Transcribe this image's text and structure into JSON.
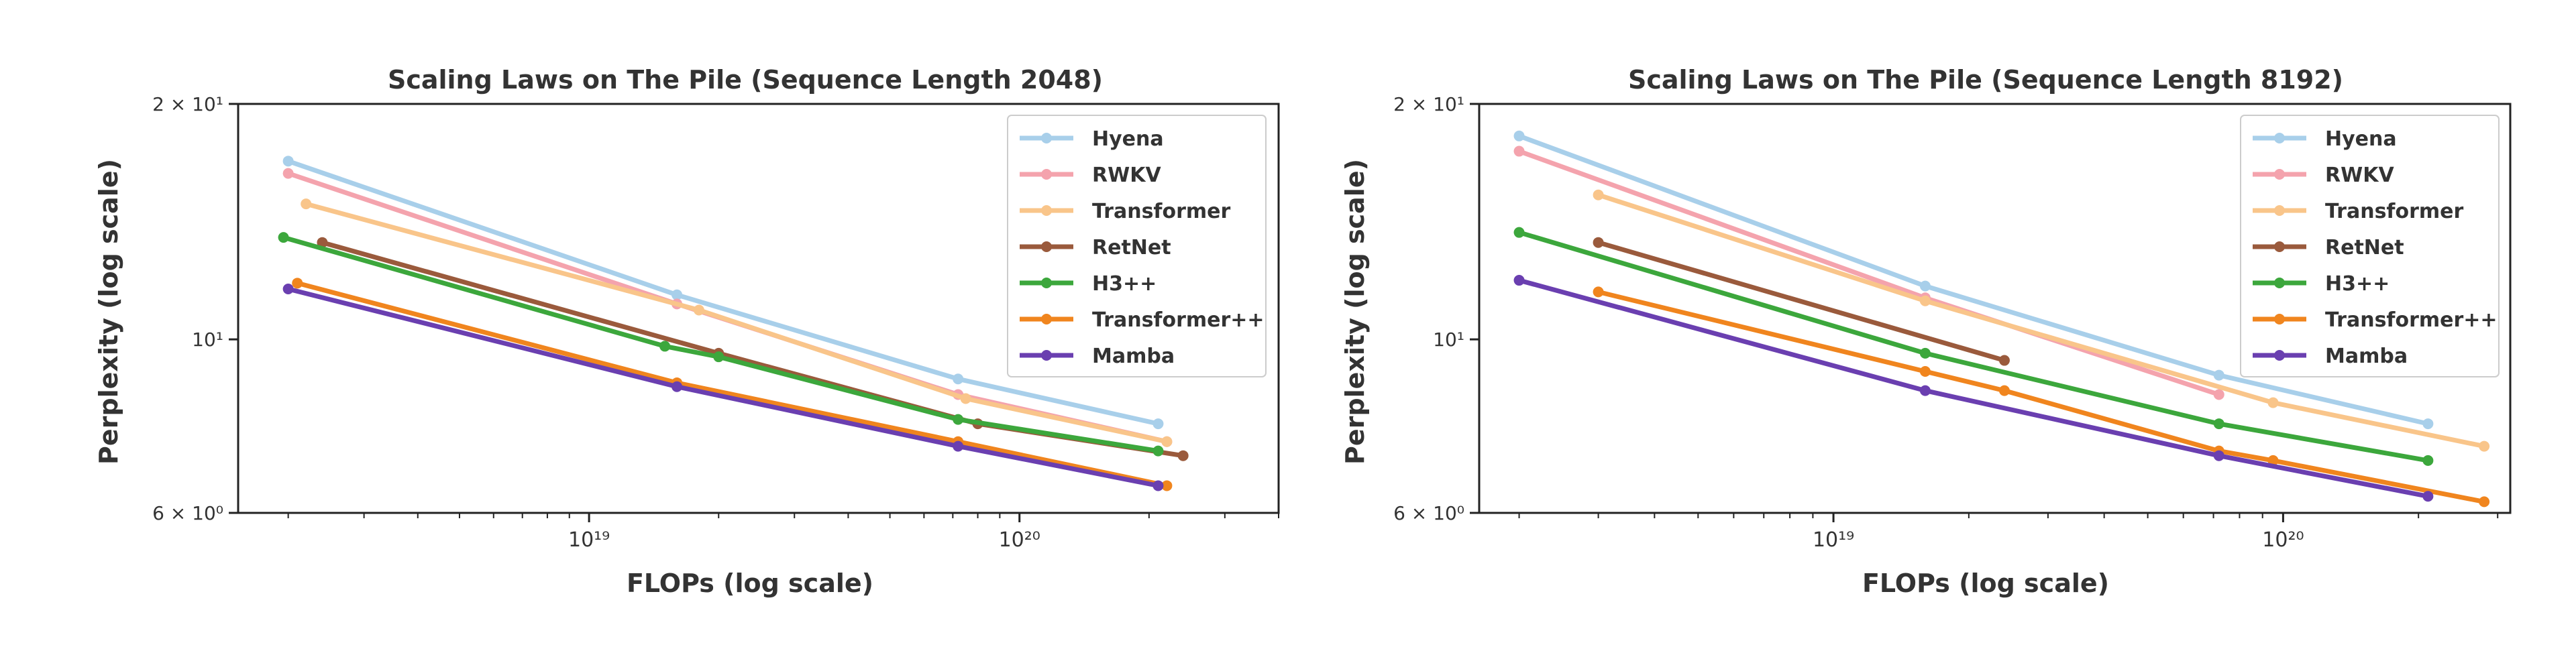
{
  "chart_data": [
    {
      "type": "line",
      "title": "Scaling Laws on The Pile (Sequence Length 2048)",
      "xlabel": "FLOPs (log scale)",
      "ylabel": "Perplexity (log scale)",
      "xscale": "log",
      "yscale": "log",
      "xlim": [
        1.53e+18,
        4e+20
      ],
      "ylim": [
        6,
        20
      ],
      "xticks": [
        {
          "value": 1e+19,
          "label": "10¹⁹"
        },
        {
          "value": 1e+20,
          "label": "10²⁰"
        }
      ],
      "yticks": [
        {
          "value": 20,
          "label": "2 × 10¹"
        },
        {
          "value": 10,
          "label": "10¹"
        },
        {
          "value": 6,
          "label": "6 × 10⁰"
        }
      ],
      "grid": false,
      "legend": "top-right",
      "series": [
        {
          "name": "Hyena",
          "color": "#a8cfea",
          "x": [
            2e+18,
            1.6e+19,
            7.2e+19,
            2.1e+20
          ],
          "y": [
            16.9,
            11.4,
            8.9,
            7.8
          ]
        },
        {
          "name": "RWKV",
          "color": "#f4a3ad",
          "x": [
            2e+18,
            1.6e+19,
            7.2e+19,
            2.2e+20
          ],
          "y": [
            16.3,
            11.1,
            8.5,
            7.4
          ]
        },
        {
          "name": "Transformer",
          "color": "#f9c58a",
          "x": [
            2.2e+18,
            1.8e+19,
            7.5e+19,
            2.2e+20
          ],
          "y": [
            14.9,
            10.9,
            8.4,
            7.4
          ]
        },
        {
          "name": "RetNet",
          "color": "#9a5a3c",
          "x": [
            2.4e+18,
            2e+19,
            8e+19,
            2.4e+20
          ],
          "y": [
            13.3,
            9.6,
            7.8,
            7.1
          ]
        },
        {
          "name": "H3++",
          "color": "#3ca73c",
          "x": [
            1.95e+18,
            1.5e+19,
            2e+19,
            7.2e+19,
            2.1e+20
          ],
          "y": [
            13.5,
            9.8,
            9.5,
            7.9,
            7.2
          ]
        },
        {
          "name": "Transformer++",
          "color": "#f0851e",
          "x": [
            2.1e+18,
            1.6e+19,
            7.2e+19,
            2.2e+20
          ],
          "y": [
            11.8,
            8.8,
            7.4,
            6.5
          ]
        },
        {
          "name": "Mamba",
          "color": "#6a3fb0",
          "x": [
            2e+18,
            1.6e+19,
            7.2e+19,
            2.1e+20
          ],
          "y": [
            11.6,
            8.7,
            7.3,
            6.5
          ]
        }
      ]
    },
    {
      "type": "line",
      "title": "Scaling Laws on The Pile (Sequence Length 8192)",
      "xlabel": "FLOPs (log scale)",
      "ylabel": "Perplexity (log scale)",
      "xscale": "log",
      "yscale": "log",
      "xlim": [
        1.63e+18,
        3.2e+20
      ],
      "ylim": [
        6,
        20
      ],
      "xticks": [
        {
          "value": 1e+19,
          "label": "10¹⁹"
        },
        {
          "value": 1e+20,
          "label": "10²⁰"
        }
      ],
      "yticks": [
        {
          "value": 20,
          "label": "2 × 10¹"
        },
        {
          "value": 10,
          "label": "10¹"
        },
        {
          "value": 6,
          "label": "6 × 10⁰"
        }
      ],
      "grid": false,
      "legend": "top-right",
      "series": [
        {
          "name": "Hyena",
          "color": "#a8cfea",
          "x": [
            2e+18,
            1.6e+19,
            7.2e+19,
            2.1e+20
          ],
          "y": [
            18.2,
            11.7,
            9.0,
            7.8
          ]
        },
        {
          "name": "RWKV",
          "color": "#f4a3ad",
          "x": [
            2e+18,
            1.6e+19,
            7.2e+19
          ],
          "y": [
            17.4,
            11.3,
            8.5
          ]
        },
        {
          "name": "Transformer",
          "color": "#f9c58a",
          "x": [
            3e+18,
            1.6e+19,
            9.5e+19,
            2.8e+20
          ],
          "y": [
            15.3,
            11.2,
            8.3,
            7.3
          ]
        },
        {
          "name": "RetNet",
          "color": "#9a5a3c",
          "x": [
            3e+18,
            2.4e+19
          ],
          "y": [
            13.3,
            9.4
          ]
        },
        {
          "name": "H3++",
          "color": "#3ca73c",
          "x": [
            2e+18,
            1.6e+19,
            7.2e+19,
            2.1e+20
          ],
          "y": [
            13.7,
            9.6,
            7.8,
            7.0
          ]
        },
        {
          "name": "Transformer++",
          "color": "#f0851e",
          "x": [
            3e+18,
            1.6e+19,
            2.4e+19,
            7.2e+19,
            9.5e+19,
            2.8e+20
          ],
          "y": [
            11.5,
            9.1,
            8.6,
            7.2,
            7.0,
            6.2
          ]
        },
        {
          "name": "Mamba",
          "color": "#6a3fb0",
          "x": [
            2e+18,
            1.6e+19,
            7.2e+19,
            2.1e+20
          ],
          "y": [
            11.9,
            8.6,
            7.1,
            6.3
          ]
        }
      ]
    }
  ]
}
